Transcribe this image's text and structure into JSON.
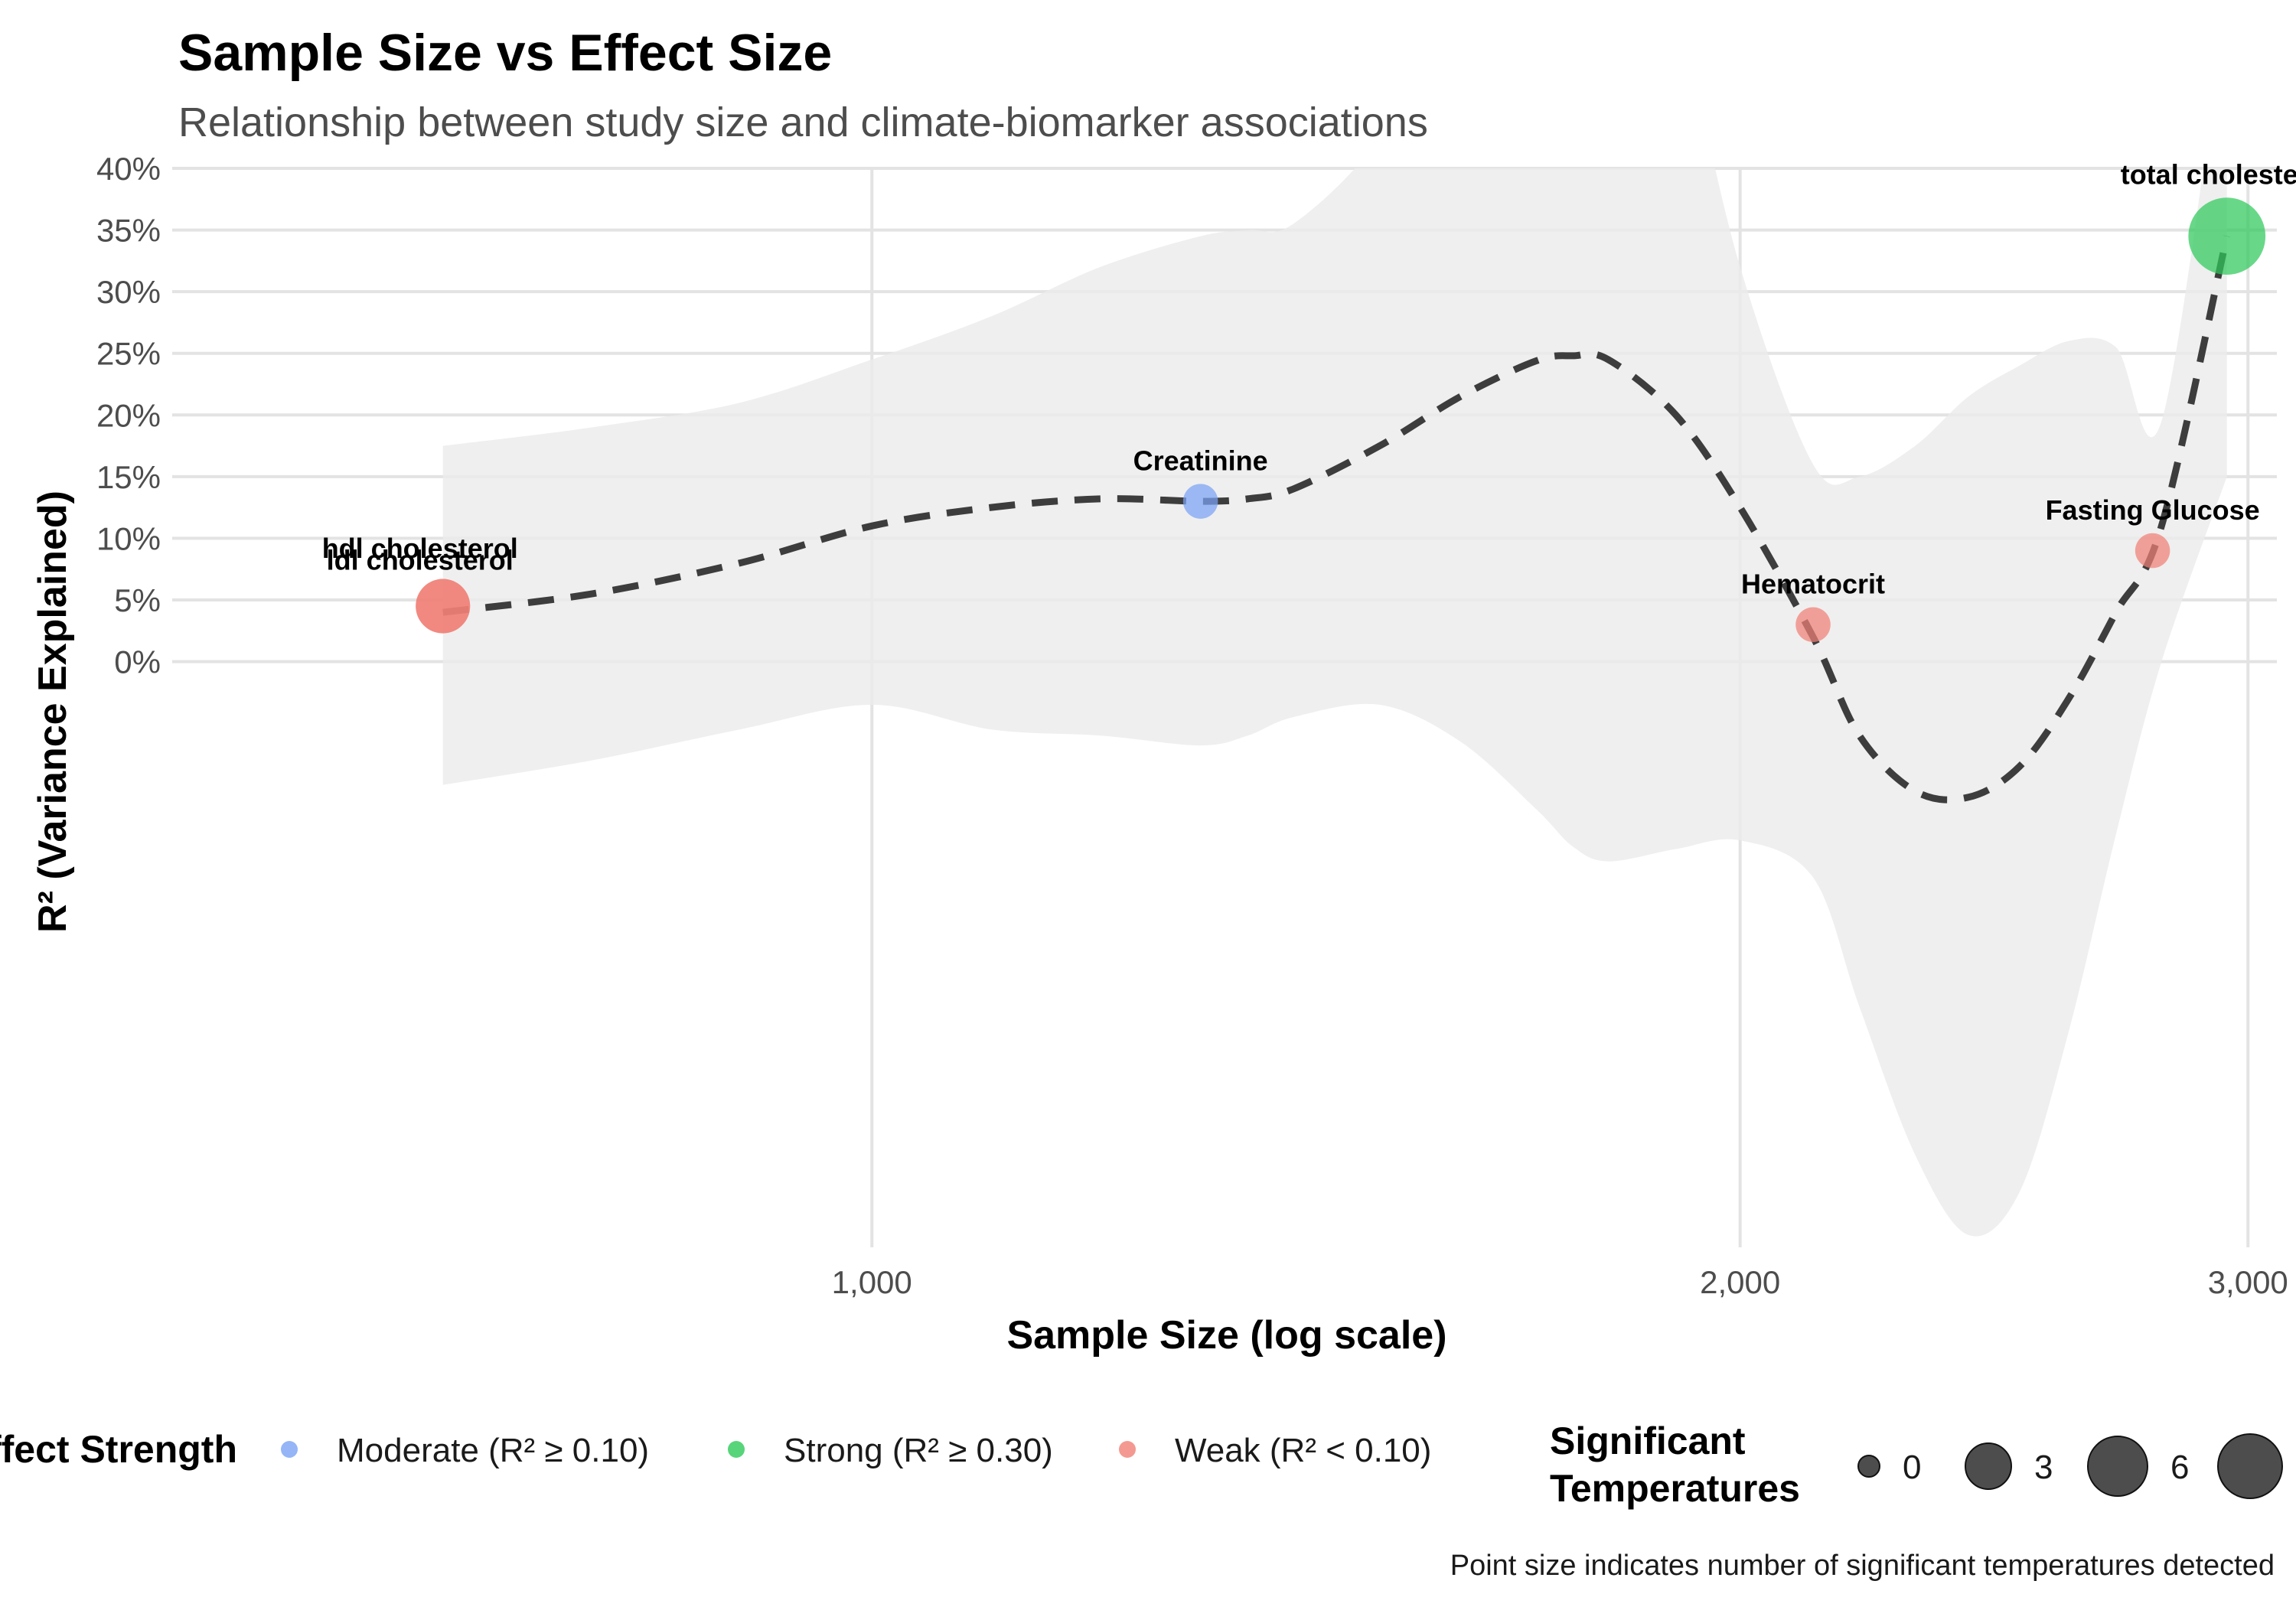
{
  "chart_data": {
    "type": "scatter",
    "title": "Sample Size vs Effect Size",
    "subtitle": "Relationship between study size and climate-biomarker associations",
    "xlabel": "Sample Size (log scale)",
    "ylabel": "R² (Variance Explained)",
    "x_scale": "log",
    "xlim": [
      572,
      3070
    ],
    "ylim": [
      -0.475,
      0.4
    ],
    "x_ticks": [
      {
        "value": 1000,
        "label": "1,000"
      },
      {
        "value": 2000,
        "label": "2,000"
      },
      {
        "value": 3000,
        "label": "3,000"
      }
    ],
    "y_ticks": [
      {
        "value": 0.0,
        "label": "0%"
      },
      {
        "value": 0.05,
        "label": "5%"
      },
      {
        "value": 0.1,
        "label": "10%"
      },
      {
        "value": 0.15,
        "label": "15%"
      },
      {
        "value": 0.2,
        "label": "20%"
      },
      {
        "value": 0.25,
        "label": "25%"
      },
      {
        "value": 0.3,
        "label": "30%"
      },
      {
        "value": 0.35,
        "label": "35%"
      },
      {
        "value": 0.4,
        "label": "40%"
      }
    ],
    "grid": true,
    "points": [
      {
        "label": "ldl cholesterol",
        "x": 710,
        "y": 0.045,
        "sig_temps": 4,
        "strength": "Weak (R² < 0.10)",
        "label_dx": -0.3,
        "label_dy": 0.025
      },
      {
        "label": "hdl cholesterol",
        "x": 710,
        "y": 0.045,
        "sig_temps": 4,
        "strength": "Weak (R² < 0.10)",
        "label_dx": -0.3,
        "label_dy": 0.038
      },
      {
        "label": "Creatinine",
        "x": 1300,
        "y": 0.13,
        "sig_temps": 1,
        "strength": "Moderate (R² ≥ 0.10)",
        "label_dx": 0,
        "label_dy": 0.03
      },
      {
        "label": "Hematocrit",
        "x": 2120,
        "y": 0.03,
        "sig_temps": 1,
        "strength": "Weak (R² < 0.10)",
        "label_dx": 0,
        "label_dy": 0.03
      },
      {
        "label": "Fasting Glucose",
        "x": 2780,
        "y": 0.09,
        "sig_temps": 1,
        "strength": "Weak (R² < 0.10)",
        "label_dx": 0,
        "label_dy": 0.03
      },
      {
        "label": "total cholesterol",
        "x": 2950,
        "y": 0.345,
        "sig_temps": 10,
        "strength": "Strong (R² ≥ 0.30)",
        "label_dx": 0,
        "label_dy": 0.03
      }
    ],
    "smooth_fit": {
      "x": [
        710,
        800,
        900,
        1000,
        1100,
        1200,
        1300,
        1350,
        1400,
        1500,
        1600,
        1700,
        1750,
        1800,
        1900,
        2000,
        2120,
        2200,
        2300,
        2400,
        2500,
        2600,
        2700,
        2800,
        2950
      ],
      "y": [
        0.04,
        0.055,
        0.08,
        0.11,
        0.125,
        0.132,
        0.13,
        0.132,
        0.14,
        0.175,
        0.215,
        0.244,
        0.248,
        0.245,
        0.2,
        0.125,
        0.02,
        -0.06,
        -0.105,
        -0.11,
        -0.085,
        -0.03,
        0.04,
        0.11,
        0.345
      ],
      "ci_upper": [
        0.175,
        0.19,
        0.21,
        0.245,
        0.28,
        0.32,
        0.345,
        0.35,
        0.355,
        0.425,
        0.545,
        0.655,
        0.68,
        0.665,
        0.53,
        0.32,
        0.16,
        0.15,
        0.175,
        0.215,
        0.24,
        0.26,
        0.255,
        0.195,
        0.54
      ],
      "ci_lower": [
        -0.1,
        -0.08,
        -0.055,
        -0.035,
        -0.055,
        -0.06,
        -0.068,
        -0.06,
        -0.045,
        -0.035,
        -0.065,
        -0.12,
        -0.15,
        -0.162,
        -0.152,
        -0.145,
        -0.175,
        -0.28,
        -0.4,
        -0.465,
        -0.43,
        -0.3,
        -0.14,
        0.0,
        0.15
      ]
    },
    "legend_strength": {
      "title": "Effect Strength",
      "entries": [
        {
          "label": "Moderate (R² ≥ 0.10)",
          "color": "#7aa2f5"
        },
        {
          "label": "Strong (R² ≥ 0.30)",
          "color": "#2ec95a"
        },
        {
          "label": "Weak (R² < 0.10)",
          "color": "#f07f76"
        }
      ]
    },
    "legend_size": {
      "title_line1": "Significant",
      "title_line2": "Temperatures",
      "entries": [
        {
          "label": "0",
          "value": 0
        },
        {
          "label": "3",
          "value": 3
        },
        {
          "label": "6",
          "value": 6
        },
        {
          "label": "",
          "value": 9
        }
      ]
    },
    "caption": "Point size indicates number of significant temperatures detected"
  }
}
